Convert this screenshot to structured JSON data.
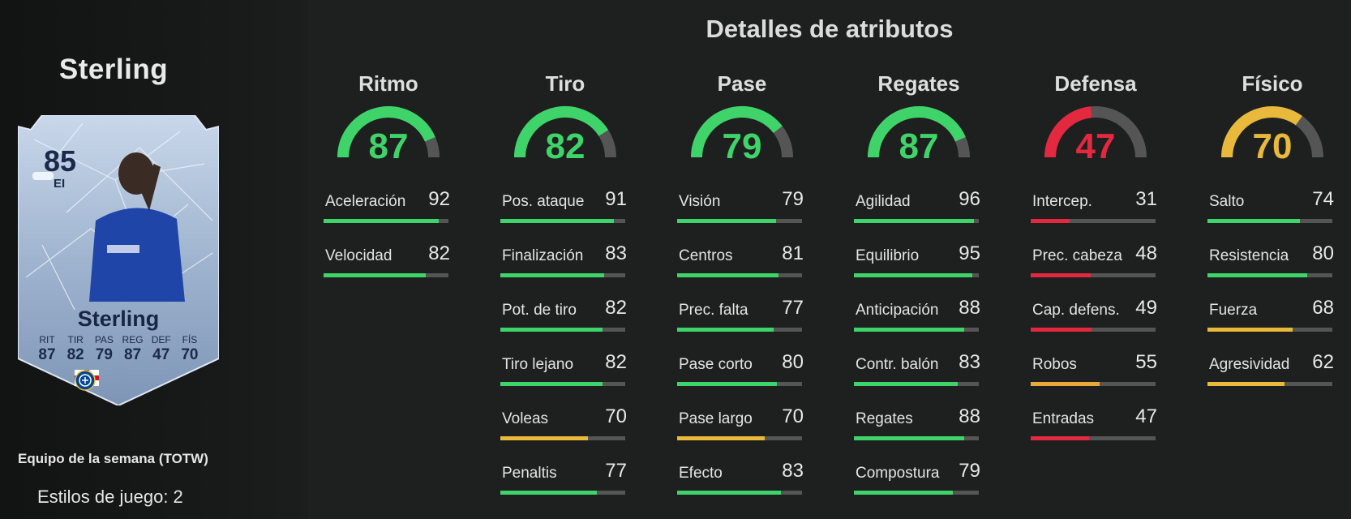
{
  "colors": {
    "green": "#3fd46a",
    "yellow": "#e8b93a",
    "orange": "#e8a73a",
    "red": "#e3283f",
    "track": "#555555"
  },
  "sidebar": {
    "player_name": "Sterling",
    "promo": "Equipo de la semana (TOTW)",
    "playstyles": "Estilos de juego: 2",
    "card": {
      "rating": "85",
      "position": "EI",
      "name": "Sterling",
      "stats": [
        {
          "key": "RIT",
          "value": "87"
        },
        {
          "key": "TIR",
          "value": "82"
        },
        {
          "key": "PAS",
          "value": "79"
        },
        {
          "key": "REG",
          "value": "87"
        },
        {
          "key": "DEF",
          "value": "47"
        },
        {
          "key": "FÍS",
          "value": "70"
        }
      ],
      "icons": [
        "england-flag-icon",
        "premier-league-icon",
        "chelsea-crest-icon"
      ]
    }
  },
  "main": {
    "title": "Detalles de atributos",
    "groups": [
      {
        "name": "Ritmo",
        "value": 87,
        "color": "#3fd46a",
        "attrs": [
          {
            "name": "Aceleración",
            "value": 92,
            "color": "#3fd46a"
          },
          {
            "name": "Velocidad",
            "value": 82,
            "color": "#3fd46a"
          }
        ]
      },
      {
        "name": "Tiro",
        "value": 82,
        "color": "#3fd46a",
        "attrs": [
          {
            "name": "Pos. ataque",
            "value": 91,
            "color": "#3fd46a"
          },
          {
            "name": "Finalización",
            "value": 83,
            "color": "#3fd46a"
          },
          {
            "name": "Pot. de tiro",
            "value": 82,
            "color": "#3fd46a"
          },
          {
            "name": "Tiro lejano",
            "value": 82,
            "color": "#3fd46a"
          },
          {
            "name": "Voleas",
            "value": 70,
            "color": "#e8b93a"
          },
          {
            "name": "Penaltis",
            "value": 77,
            "color": "#3fd46a"
          }
        ]
      },
      {
        "name": "Pase",
        "value": 79,
        "color": "#3fd46a",
        "attrs": [
          {
            "name": "Visión",
            "value": 79,
            "color": "#3fd46a"
          },
          {
            "name": "Centros",
            "value": 81,
            "color": "#3fd46a"
          },
          {
            "name": "Prec. falta",
            "value": 77,
            "color": "#3fd46a"
          },
          {
            "name": "Pase corto",
            "value": 80,
            "color": "#3fd46a"
          },
          {
            "name": "Pase largo",
            "value": 70,
            "color": "#e8b93a"
          },
          {
            "name": "Efecto",
            "value": 83,
            "color": "#3fd46a"
          }
        ]
      },
      {
        "name": "Regates",
        "value": 87,
        "color": "#3fd46a",
        "attrs": [
          {
            "name": "Agilidad",
            "value": 96,
            "color": "#3fd46a"
          },
          {
            "name": "Equilibrio",
            "value": 95,
            "color": "#3fd46a"
          },
          {
            "name": "Anticipación",
            "value": 88,
            "color": "#3fd46a"
          },
          {
            "name": "Contr. balón",
            "value": 83,
            "color": "#3fd46a"
          },
          {
            "name": "Regates",
            "value": 88,
            "color": "#3fd46a"
          },
          {
            "name": "Compostura",
            "value": 79,
            "color": "#3fd46a"
          }
        ]
      },
      {
        "name": "Defensa",
        "value": 47,
        "color": "#e3283f",
        "attrs": [
          {
            "name": "Intercep.",
            "value": 31,
            "color": "#e3283f"
          },
          {
            "name": "Prec. cabeza",
            "value": 48,
            "color": "#e3283f"
          },
          {
            "name": "Cap. defens.",
            "value": 49,
            "color": "#e3283f"
          },
          {
            "name": "Robos",
            "value": 55,
            "color": "#e8a73a"
          },
          {
            "name": "Entradas",
            "value": 47,
            "color": "#e3283f"
          }
        ]
      },
      {
        "name": "Físico",
        "value": 70,
        "color": "#e8b93a",
        "attrs": [
          {
            "name": "Salto",
            "value": 74,
            "color": "#3fd46a"
          },
          {
            "name": "Resistencia",
            "value": 80,
            "color": "#3fd46a"
          },
          {
            "name": "Fuerza",
            "value": 68,
            "color": "#e8b93a"
          },
          {
            "name": "Agresividad",
            "value": 62,
            "color": "#e8b93a"
          }
        ]
      }
    ]
  }
}
